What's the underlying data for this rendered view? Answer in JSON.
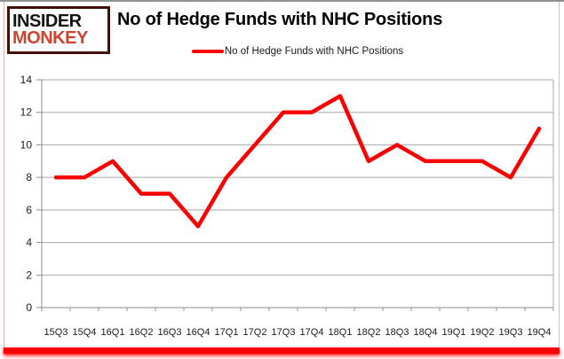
{
  "header": {
    "logo_line1": "INSIDER",
    "logo_line2": "MONKEY",
    "title": "No of Hedge Funds with NHC Positions"
  },
  "legend": {
    "label": "No of Hedge Funds with NHC Positions"
  },
  "colors": {
    "series_line": "#fb0000",
    "gridline": "#a6a6a6",
    "axis": "#8c8c8c",
    "tick_label": "#1a1a1a",
    "logo_accent": "#cd4431",
    "logo_border": "#431008",
    "frame_top": "#929292",
    "frame_sides": "#f2b3b3",
    "bottom_bar": "#fb0000"
  },
  "chart_data": {
    "type": "line",
    "title": "No of Hedge Funds with NHC Positions",
    "categories": [
      "15Q3",
      "15Q4",
      "16Q1",
      "16Q2",
      "16Q3",
      "16Q4",
      "17Q1",
      "17Q2",
      "17Q3",
      "17Q4",
      "18Q1",
      "18Q2",
      "18Q3",
      "18Q4",
      "19Q1",
      "19Q2",
      "19Q3",
      "19Q4"
    ],
    "series": [
      {
        "name": "No of Hedge Funds with NHC Positions",
        "values": [
          8,
          8,
          9,
          7,
          7,
          5,
          8,
          10,
          12,
          12,
          13,
          9,
          10,
          9,
          9,
          9,
          8,
          11
        ]
      }
    ],
    "xlabel": "",
    "ylabel": "",
    "ylim": [
      0,
      14
    ],
    "ytick_step": 2,
    "grid": "horizontal",
    "legend_position": "top"
  }
}
